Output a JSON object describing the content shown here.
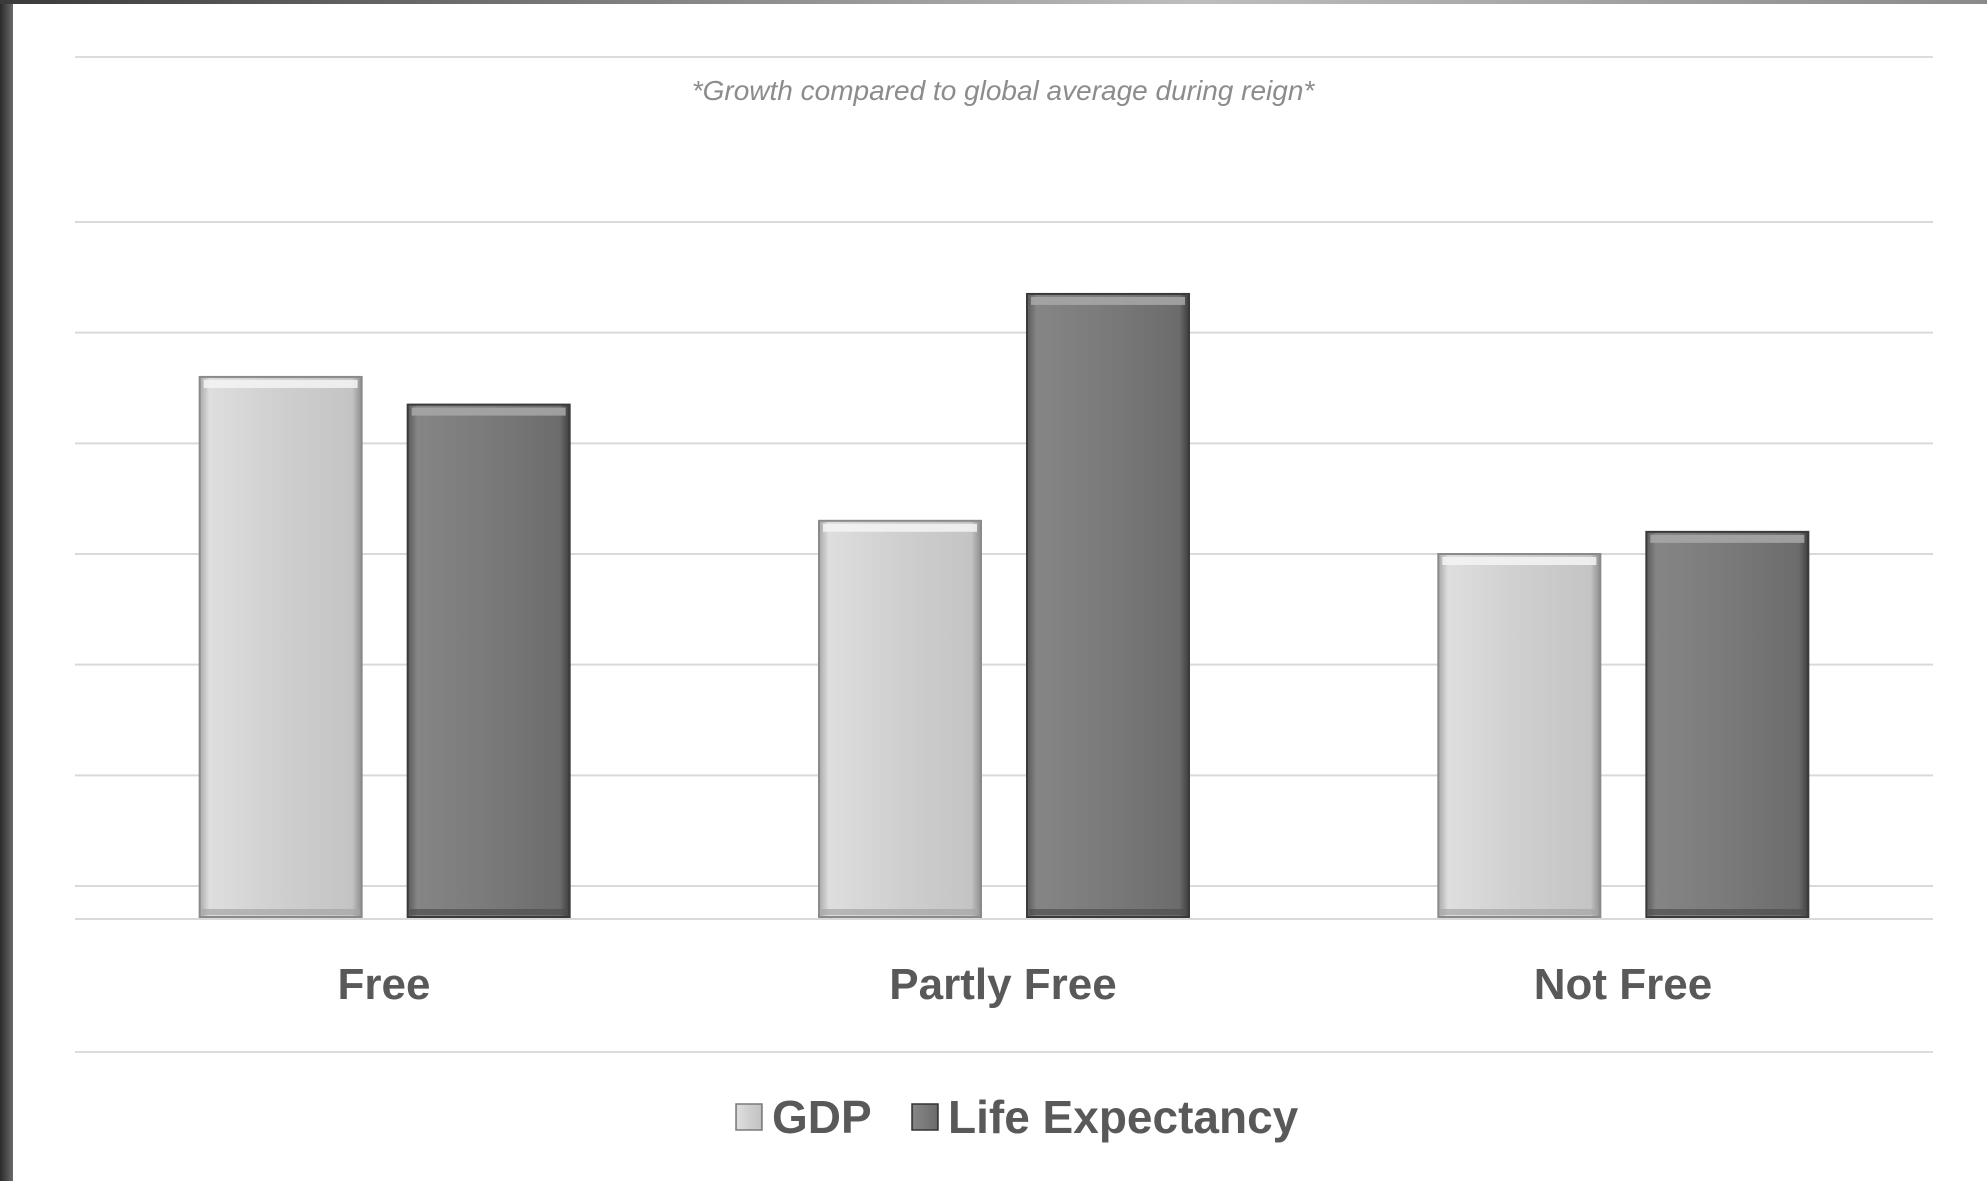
{
  "chart_data": {
    "type": "bar",
    "subtitle": "*Growth compared to global average during reign*",
    "categories": [
      "Free",
      "Partly Free",
      "Not Free"
    ],
    "series": [
      {
        "name": "GDP",
        "values": [
          4.6,
          3.3,
          3.0
        ],
        "color": "#cccccc"
      },
      {
        "name": "Life Expectancy",
        "values": [
          4.35,
          5.35,
          3.2
        ],
        "color": "#777777"
      }
    ],
    "ylim": [
      0,
      6
    ],
    "grid": true,
    "legend_position": "bottom"
  }
}
